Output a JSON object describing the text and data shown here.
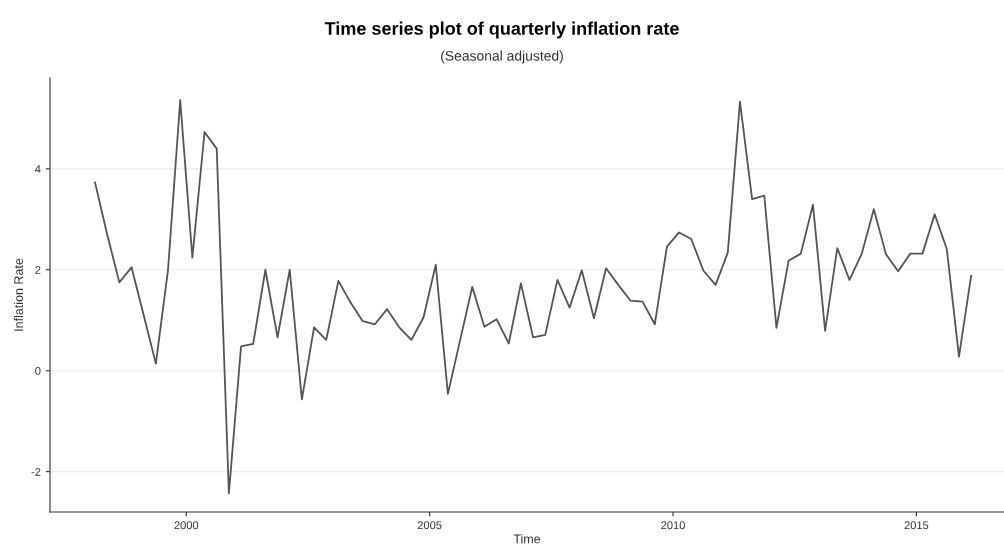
{
  "chart_data": {
    "type": "line",
    "title": "Time series plot of quarterly inflation rate",
    "subtitle": "(Seasonal adjusted)",
    "xlabel": "Time",
    "ylabel": "Inflation Rate",
    "x": [
      1998.125,
      1998.375,
      1998.625,
      1998.875,
      1999.125,
      1999.375,
      1999.625,
      1999.875,
      2000.125,
      2000.375,
      2000.625,
      2000.875,
      2001.125,
      2001.375,
      2001.625,
      2001.875,
      2002.125,
      2002.375,
      2002.625,
      2002.875,
      2003.125,
      2003.375,
      2003.625,
      2003.875,
      2004.125,
      2004.375,
      2004.625,
      2004.875,
      2005.125,
      2005.375,
      2005.625,
      2005.875,
      2006.125,
      2006.375,
      2006.625,
      2006.875,
      2007.125,
      2007.375,
      2007.625,
      2007.875,
      2008.125,
      2008.375,
      2008.625,
      2008.875,
      2009.125,
      2009.375,
      2009.625,
      2009.875,
      2010.125,
      2010.375,
      2010.625,
      2010.875,
      2011.125,
      2011.375,
      2011.625,
      2011.875,
      2012.125,
      2012.375,
      2012.625,
      2012.875,
      2013.125,
      2013.375,
      2013.625,
      2013.875,
      2014.125,
      2014.375,
      2014.625,
      2014.875,
      2015.125,
      2015.375,
      2015.625,
      2015.875,
      2016.125
    ],
    "series": [
      {
        "color": "#555555",
        "values": [
          3.73,
          2.7,
          1.75,
          2.05,
          1.1,
          0.14,
          2.0,
          5.36,
          2.24,
          4.73,
          4.4,
          -2.43,
          0.48,
          0.53,
          2.0,
          0.66,
          2.0,
          -0.57,
          0.86,
          0.61,
          1.78,
          1.35,
          0.98,
          0.92,
          1.22,
          0.86,
          0.61,
          1.06,
          2.1,
          -0.46,
          0.6,
          1.66,
          0.87,
          1.02,
          0.54,
          1.73,
          0.66,
          0.71,
          1.8,
          1.25,
          1.99,
          1.04,
          2.03,
          1.7,
          1.39,
          1.37,
          0.92,
          2.46,
          2.74,
          2.61,
          1.98,
          1.7,
          2.34,
          5.33,
          3.4,
          3.47,
          0.85,
          2.18,
          2.32,
          3.29,
          0.79,
          2.43,
          1.8,
          2.31,
          3.2,
          2.31,
          1.97,
          2.32,
          2.32,
          3.1,
          2.41,
          0.28,
          1.88
        ]
      }
    ],
    "xlim": [
      1997.2,
      2016.8
    ],
    "xticks": [
      2000,
      2005,
      2010,
      2015
    ],
    "ylim": [
      -2.8,
      5.8
    ],
    "yticks": [
      -2,
      0,
      2,
      4
    ],
    "grid": "y",
    "legend": false,
    "marker": "none",
    "line_style": "solid"
  }
}
